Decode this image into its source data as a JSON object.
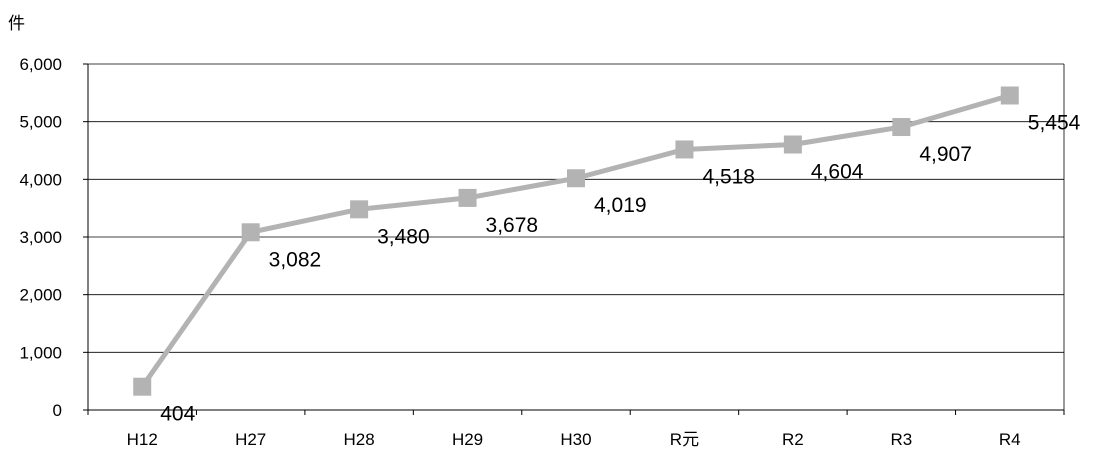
{
  "chart_data": {
    "type": "line",
    "y_unit": "件",
    "categories": [
      "H12",
      "H27",
      "H28",
      "H29",
      "H30",
      "R元",
      "R2",
      "R3",
      "R4"
    ],
    "series": [
      {
        "values": [
          404,
          3082,
          3480,
          3678,
          4019,
          4518,
          4604,
          4907,
          5454
        ]
      }
    ],
    "data_labels": [
      "404",
      "3,082",
      "3,480",
      "3,678",
      "4,019",
      "4,518",
      "4,604",
      "4,907",
      "5,454"
    ],
    "y_ticks": [
      "0",
      "1,000",
      "2,000",
      "3,000",
      "4,000",
      "5,000",
      "6,000"
    ],
    "ylim": [
      0,
      6000
    ],
    "grid": true,
    "legend": "none",
    "colors": {
      "line": "#b3b3b3",
      "marker": "#b3b3b3",
      "grid": "#000000",
      "axis": "#000000"
    }
  }
}
